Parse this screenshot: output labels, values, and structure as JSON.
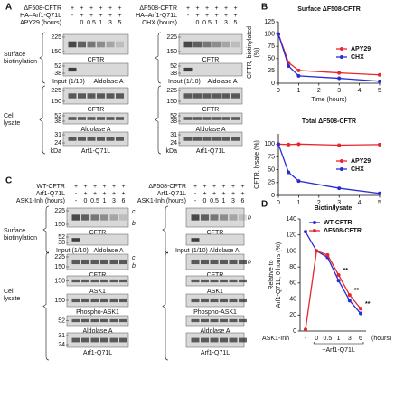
{
  "panel_a": {
    "letter": "A",
    "sections": [
      [
        "Surface",
        "biotinylation"
      ],
      [
        "Cell",
        "lysate"
      ]
    ],
    "blocks": [
      {
        "header": [
          {
            "label": "ΔF508-CFTR",
            "lanes": [
              "+",
              "+",
              "+",
              "+",
              "+",
              "+"
            ]
          },
          {
            "label": "HA–Arf1-Q71L",
            "lanes": [
              "-",
              "+",
              "+",
              "+",
              "+",
              "+"
            ]
          },
          {
            "label": "APY29 (hours)",
            "lanes": [
              null,
              "0",
              "0.5",
              "1",
              "3",
              "5"
            ]
          }
        ],
        "blots": [
          {
            "label": "CFTR",
            "markers": [
              225,
              150
            ]
          },
          {
            "label": "Aldolase A",
            "note": "Input (1/10)",
            "markers": [
              52,
              38
            ]
          },
          {
            "label": "CFTR",
            "markers": [
              225,
              150
            ]
          },
          {
            "label": "Aldolase A",
            "markers": [
              52,
              38
            ]
          },
          {
            "label": "Arf1-Q71L",
            "markers": [
              31,
              24
            ]
          }
        ],
        "unit": "kDa"
      },
      {
        "header": [
          {
            "label": "ΔF508-CFTR",
            "lanes": [
              "+",
              "+",
              "+",
              "+",
              "+",
              "+"
            ]
          },
          {
            "label": "HA–Arf1-Q71L",
            "lanes": [
              "-",
              "+",
              "+",
              "+",
              "+",
              "+"
            ]
          },
          {
            "label": "CHX (hours)",
            "lanes": [
              null,
              "0",
              "0.5",
              "1",
              "3",
              "5"
            ]
          }
        ],
        "blots": [
          {
            "label": "CFTR",
            "markers": [
              225,
              150
            ]
          },
          {
            "label": "Aldolase A",
            "note": "Input (1/10)",
            "markers": [
              52,
              38
            ]
          },
          {
            "label": "CFTR",
            "markers": [
              225,
              150
            ]
          },
          {
            "label": "Aldolase A",
            "markers": [
              52,
              38
            ]
          },
          {
            "label": "Arf1-Q71L",
            "markers": [
              31,
              24
            ]
          }
        ],
        "unit": "kDa"
      }
    ]
  },
  "panel_c": {
    "letter": "C",
    "sections": [
      [
        "Surface",
        "biotinylation"
      ],
      [
        "Cell",
        "lysate"
      ]
    ],
    "blocks": [
      {
        "header": [
          {
            "label": "WT-CFTR",
            "lanes": [
              "+",
              "+",
              "+",
              "+",
              "+",
              "+"
            ]
          },
          {
            "label": "Arf1-Q71L",
            "lanes": [
              "-",
              "+",
              "+",
              "+",
              "+",
              "+"
            ]
          },
          {
            "label": "ASK1-Inh (hours)",
            "lanes": [
              "-",
              "0",
              "0.5",
              "1",
              "3",
              "6"
            ]
          }
        ],
        "blots": [
          {
            "label": "CFTR",
            "markers": [
              225,
              150
            ],
            "bands": [
              "c",
              "b"
            ]
          },
          {
            "label": "Aldolase A",
            "note": "Input (1/10)",
            "markers": [
              52,
              38
            ]
          },
          {
            "label": "CFTR",
            "markers": [
              225,
              150
            ],
            "bands": [
              "c",
              "b"
            ]
          },
          {
            "label": "ASK1",
            "markers": [
              150
            ]
          },
          {
            "label": "Phospho-ASK1",
            "markers": [
              150
            ]
          },
          {
            "label": "Aldolase A",
            "markers": [
              52
            ]
          },
          {
            "label": "Arf1-Q71L",
            "markers": [
              31,
              24
            ]
          }
        ]
      },
      {
        "header": [
          {
            "label": "ΔF508-CFTR",
            "lanes": [
              "+",
              "+",
              "+",
              "+",
              "+",
              "+"
            ]
          },
          {
            "label": "Arf1-Q71L",
            "lanes": [
              "-",
              "+",
              "+",
              "+",
              "+",
              "+"
            ]
          },
          {
            "label": "ASK1-Inh (hours)",
            "lanes": [
              "-",
              "0",
              "0.5",
              "1",
              "3",
              "6"
            ]
          }
        ],
        "blots": [
          {
            "label": "CFTR",
            "bands": [
              "b"
            ]
          },
          {
            "label": "Aldolase A",
            "note": "Input (1/10)"
          },
          {
            "label": "CFTR",
            "bands": [
              "b"
            ]
          },
          {
            "label": "ASK1"
          },
          {
            "label": "Phospho-ASK1"
          },
          {
            "label": "Aldolase A"
          },
          {
            "label": "Arf1-Q71L"
          }
        ]
      }
    ]
  },
  "chart_data": [
    {
      "type": "line",
      "letter": "B",
      "title": "Surface ΔF508-CFTR",
      "y_label": [
        "CFTR, biotinylated",
        "(%)"
      ],
      "x_label": "Time (hours)",
      "x": [
        0,
        0.5,
        1,
        3,
        5
      ],
      "series": [
        {
          "name": "APY29",
          "color": "#e8262b",
          "values": [
            100,
            42,
            26,
            21,
            17
          ]
        },
        {
          "name": "CHX",
          "color": "#2b2bd6",
          "values": [
            100,
            35,
            15,
            10,
            4
          ]
        }
      ],
      "xlim": [
        0,
        5
      ],
      "ylim": [
        0,
        125
      ],
      "xticks": [
        0,
        1,
        2,
        3,
        4,
        5
      ],
      "yticks": [
        0,
        25,
        50,
        75,
        100,
        125
      ],
      "legend": "right"
    },
    {
      "type": "line",
      "title": "Total ΔF508-CFTR",
      "y_label": [
        "CFTR, lysate (%)"
      ],
      "x": [
        0,
        0.5,
        1,
        3,
        5
      ],
      "series": [
        {
          "name": "APY29",
          "color": "#e8262b",
          "values": [
            100,
            99,
            100,
            98,
            99
          ]
        },
        {
          "name": "CHX",
          "color": "#2b2bd6",
          "values": [
            100,
            45,
            28,
            14,
            4
          ]
        }
      ],
      "xlim": [
        0,
        5
      ],
      "ylim": [
        0,
        120
      ],
      "xticks": [
        0,
        1,
        2,
        3,
        4,
        5
      ],
      "yticks": [
        0,
        25,
        50,
        75,
        100
      ],
      "legend": "right"
    },
    {
      "type": "line",
      "letter": "D",
      "title": "Biotin/lysate",
      "y_label": [
        "Relative to",
        "Arf1-Q71L, 0 hours (%)"
      ],
      "x_label": "(hours)",
      "row_label": "ASK1-Inh",
      "group_label": "+Arf1-Q71L",
      "categories": [
        "-",
        "0",
        "0.5",
        "1",
        "3",
        "6"
      ],
      "series": [
        {
          "name": "WT-CFTR",
          "color": "#2b2bd6",
          "values": [
            124,
            100,
            92,
            63,
            38,
            22
          ]
        },
        {
          "name": "ΔF508-CFTR",
          "color": "#e8262b",
          "values": [
            2,
            100,
            95,
            70,
            45,
            28
          ]
        }
      ],
      "annotations": [
        {
          "text": "**",
          "at": 3
        },
        {
          "text": "**",
          "at": 4
        },
        {
          "text": "**",
          "at": 5
        }
      ],
      "ylim": [
        0,
        140
      ],
      "yticks": [
        0,
        20,
        40,
        60,
        80,
        100,
        120,
        140
      ],
      "legend": "top"
    }
  ]
}
